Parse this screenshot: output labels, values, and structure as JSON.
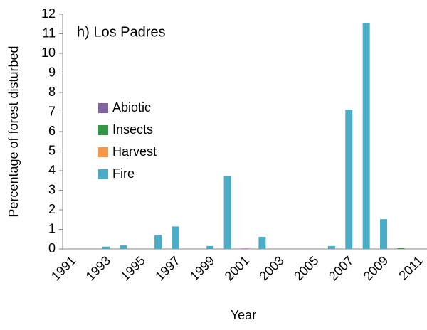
{
  "chart_data": {
    "type": "stacked_bar",
    "annotation": "h) Los Padres",
    "xlabel": "Year",
    "ylabel": "Percentage of forest disturbed",
    "categories": [
      "1991",
      null,
      "1993",
      null,
      "1995",
      null,
      "1997",
      null,
      "1999",
      null,
      "2001",
      null,
      "2003",
      null,
      "2005",
      null,
      "2007",
      null,
      "2009",
      null,
      "2011"
    ],
    "series": [
      {
        "name": "Fire",
        "color": "#4bacc6",
        "values": [
          0,
          0,
          0.12,
          0.18,
          0,
          0.7,
          1.15,
          0,
          0.15,
          3.72,
          0.03,
          0.62,
          0,
          0,
          0,
          0.15,
          7.12,
          11.55,
          1.52,
          0,
          0
        ]
      },
      {
        "name": "Harvest",
        "color": "#f79646",
        "values": [
          0,
          0,
          0,
          0,
          0,
          0,
          0,
          0,
          0,
          0,
          0,
          0,
          0,
          0,
          0,
          0,
          0,
          0,
          0,
          0,
          0
        ]
      },
      {
        "name": "Insects",
        "color": "#339944",
        "values": [
          0,
          0,
          0,
          0,
          0,
          0,
          0,
          0,
          0,
          0,
          0,
          0,
          0,
          0,
          0,
          0,
          0,
          0,
          0,
          0.05,
          0
        ]
      },
      {
        "name": "Abiotic",
        "color": "#8064a2",
        "values": [
          0,
          0,
          0,
          0,
          0,
          0.02,
          0,
          0,
          0,
          0,
          0,
          0,
          0,
          0,
          0,
          0,
          0,
          0,
          0,
          0,
          0
        ]
      }
    ],
    "ylim": [
      0,
      12
    ],
    "yticks": [
      0,
      1,
      2,
      3,
      4,
      5,
      6,
      7,
      8,
      9,
      10,
      11,
      12
    ],
    "grid": false,
    "legend": "left"
  }
}
